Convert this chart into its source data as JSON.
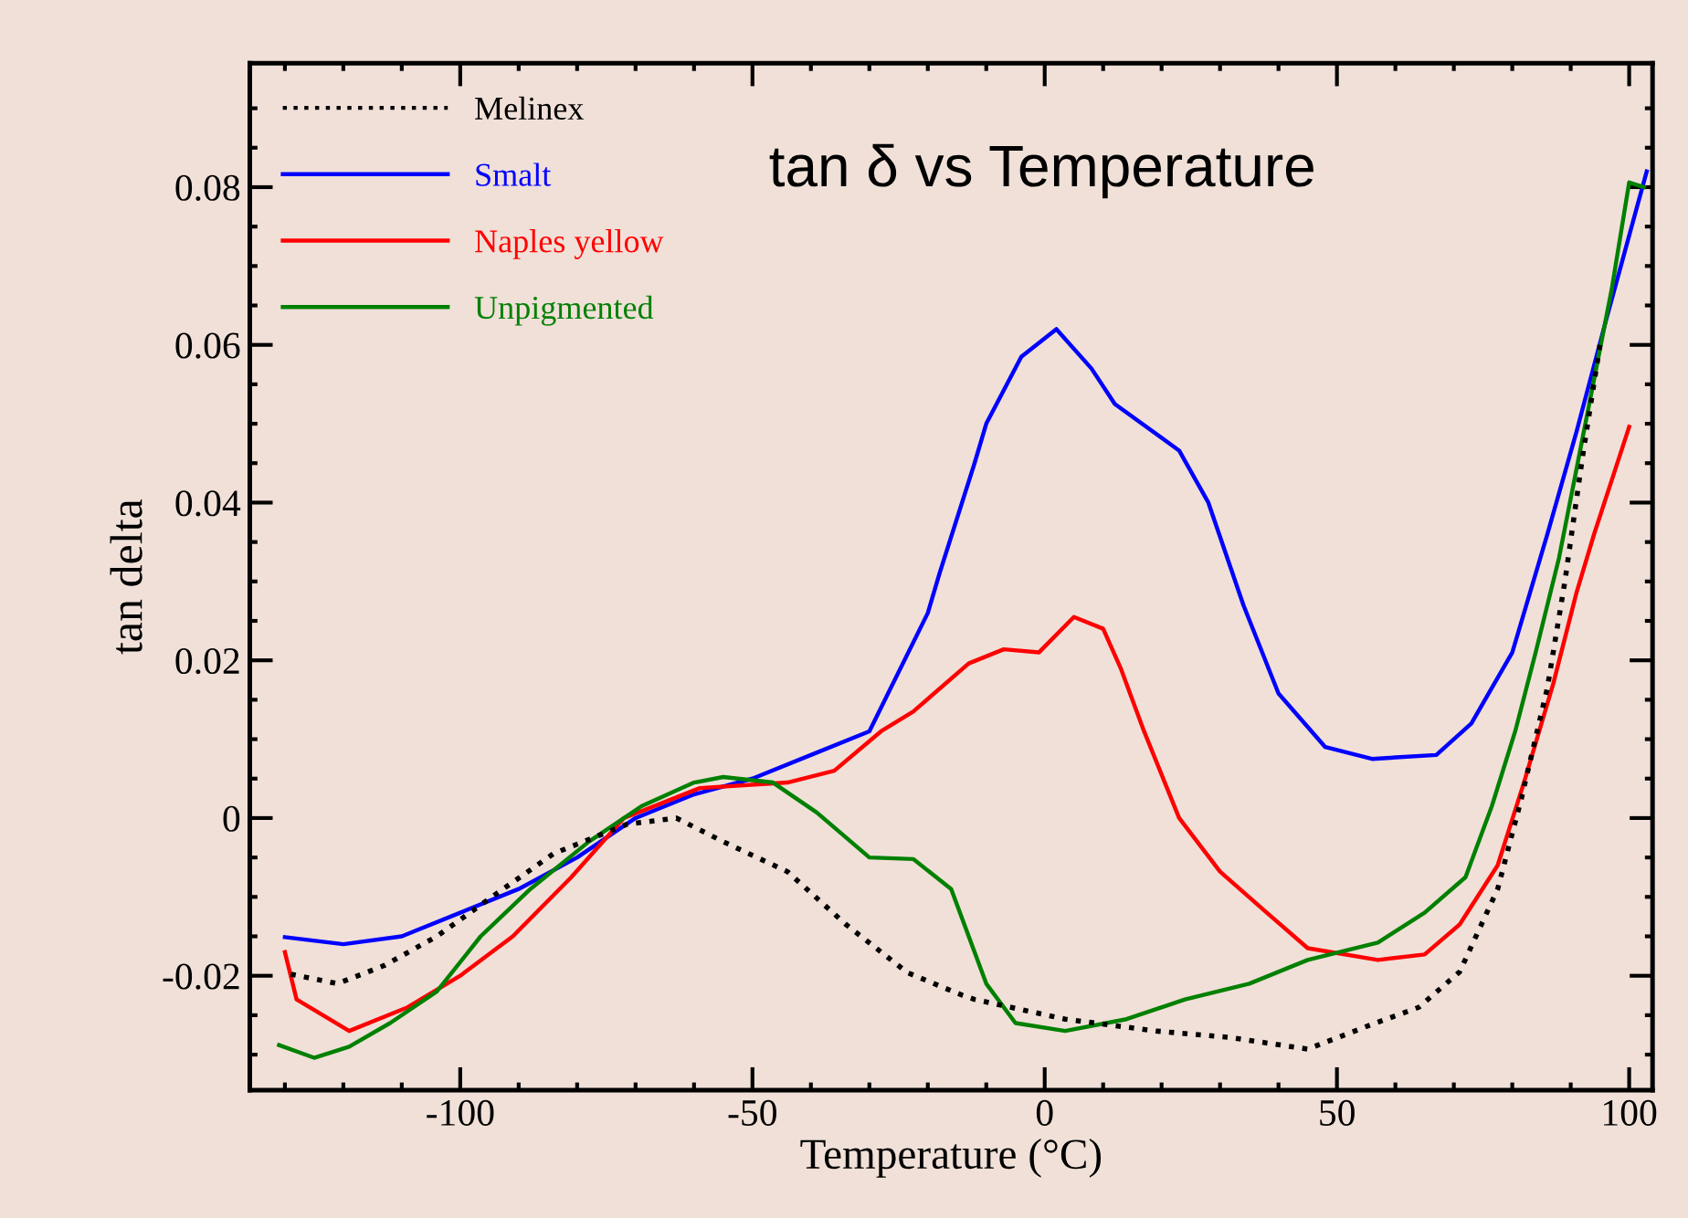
{
  "chart_data": {
    "type": "line",
    "title": "tan δ vs Temperature",
    "xlabel": "Temperature (°C)",
    "ylabel": "tan delta",
    "xlim": [
      -136,
      104
    ],
    "ylim": [
      -0.0345,
      0.0957
    ],
    "xticks": [
      {
        "value": -130,
        "label": null
      },
      {
        "value": -120,
        "label": null
      },
      {
        "value": -110,
        "label": null
      },
      -100,
      {
        "value": -90,
        "label": null
      },
      {
        "value": -80,
        "label": null
      },
      {
        "value": -70,
        "label": null
      },
      {
        "value": -60,
        "label": null
      },
      -50,
      {
        "value": -40,
        "label": null
      },
      {
        "value": -30,
        "label": null
      },
      {
        "value": -20,
        "label": null
      },
      {
        "value": -10,
        "label": null
      },
      0,
      {
        "value": 10,
        "label": null
      },
      {
        "value": 20,
        "label": null
      },
      {
        "value": 30,
        "label": null
      },
      {
        "value": 40,
        "label": null
      },
      50,
      {
        "value": 60,
        "label": null
      },
      {
        "value": 70,
        "label": null
      },
      {
        "value": 80,
        "label": null
      },
      {
        "value": 90,
        "label": null
      },
      100
    ],
    "yticks": [
      {
        "value": -0.03,
        "label": null
      },
      {
        "value": -0.025,
        "label": null
      },
      -0.02,
      {
        "value": -0.015,
        "label": null
      },
      {
        "value": -0.01,
        "label": null
      },
      {
        "value": -0.005,
        "label": null
      },
      0,
      {
        "value": 0.005,
        "label": null
      },
      {
        "value": 0.01,
        "label": null
      },
      {
        "value": 0.015,
        "label": null
      },
      0.02,
      {
        "value": 0.025,
        "label": null
      },
      {
        "value": 0.03,
        "label": null
      },
      {
        "value": 0.035,
        "label": null
      },
      0.04,
      {
        "value": 0.045,
        "label": null
      },
      {
        "value": 0.05,
        "label": null
      },
      {
        "value": 0.055,
        "label": null
      },
      0.06,
      {
        "value": 0.065,
        "label": null
      },
      {
        "value": 0.07,
        "label": null
      },
      {
        "value": 0.075,
        "label": null
      },
      0.08,
      {
        "value": 0.085,
        "label": null
      },
      {
        "value": 0.09,
        "label": null
      }
    ],
    "grid": false,
    "legend": "top left",
    "marker": "none",
    "series": [
      {
        "name": "Melinex",
        "color": "#000000",
        "line_style": "dotted",
        "x": [
          -129,
          -121,
          -113,
          -104,
          -94,
          -84,
          -71.5,
          -63,
          -55,
          -44,
          -34,
          -23.5,
          -14,
          -12,
          3.5,
          19,
          31.5,
          45,
          55.5,
          64,
          71,
          77.5,
          81.5,
          86,
          89,
          92,
          95
        ],
        "values": [
          -0.0198,
          -0.021,
          -0.0187,
          -0.015,
          -0.0097,
          -0.0045,
          -0.0008,
          0.0,
          -0.003,
          -0.0068,
          -0.0135,
          -0.0196,
          -0.0225,
          -0.023,
          -0.0255,
          -0.027,
          -0.0278,
          -0.0293,
          -0.0263,
          -0.024,
          -0.0195,
          -0.009,
          0.0023,
          0.0165,
          0.03,
          0.0457,
          0.06
        ]
      },
      {
        "name": "Smalt",
        "color": "#0000ff",
        "line_style": "solid",
        "x": [
          -130,
          -120,
          -110,
          -100,
          -90,
          -80,
          -70,
          -60,
          -50,
          -40,
          -30,
          -20,
          -18,
          -12,
          -10,
          -4,
          2,
          8,
          12,
          23,
          28,
          34,
          40,
          48,
          56,
          67,
          73,
          80,
          86,
          91,
          96,
          103
        ],
        "values": [
          -0.0151,
          -0.016,
          -0.015,
          -0.012,
          -0.009,
          -0.005,
          0.0,
          0.003,
          0.005,
          0.008,
          0.011,
          0.026,
          0.031,
          0.045,
          0.05,
          0.0585,
          0.062,
          0.057,
          0.0525,
          0.0466,
          0.04,
          0.027,
          0.0158,
          0.009,
          0.0075,
          0.008,
          0.012,
          0.021,
          0.036,
          0.049,
          0.063,
          0.082
        ]
      },
      {
        "name": "Naples yellow",
        "color": "#ff0000",
        "line_style": "solid",
        "x": [
          -130,
          -128,
          -119,
          -109,
          -100,
          -91,
          -81,
          -72,
          -59,
          -44,
          -36,
          -28,
          -22.5,
          -13,
          -7,
          -1,
          5,
          10,
          13,
          17,
          23,
          30,
          38,
          45,
          57,
          65,
          71,
          77.5,
          82,
          87,
          91,
          94,
          100
        ],
        "values": [
          -0.017,
          -0.023,
          -0.027,
          -0.024,
          -0.02,
          -0.015,
          -0.0075,
          0.0,
          0.0038,
          0.0045,
          0.006,
          0.011,
          0.0135,
          0.0196,
          0.0214,
          0.021,
          0.0255,
          0.024,
          0.019,
          0.011,
          0.0,
          -0.0068,
          -0.012,
          -0.0165,
          -0.018,
          -0.0173,
          -0.0135,
          -0.006,
          0.0045,
          0.017,
          0.0286,
          0.036,
          0.0496
        ]
      },
      {
        "name": "Unpigmented",
        "color": "#008000",
        "line_style": "solid",
        "x": [
          -131,
          -125,
          -119,
          -112,
          -104,
          -96.5,
          -88,
          -78,
          -69,
          -60,
          -55,
          -46.5,
          -39,
          -30,
          -22.5,
          -16,
          -10,
          -5,
          3.5,
          14,
          24,
          35,
          45,
          57,
          65,
          72,
          76.5,
          80.5,
          84,
          88,
          91,
          97,
          100,
          102.5
        ],
        "values": [
          -0.0288,
          -0.0304,
          -0.029,
          -0.026,
          -0.022,
          -0.015,
          -0.009,
          -0.003,
          0.0015,
          0.0045,
          0.0052,
          0.0045,
          0.0007,
          -0.005,
          -0.0052,
          -0.009,
          -0.021,
          -0.026,
          -0.027,
          -0.0255,
          -0.023,
          -0.021,
          -0.018,
          -0.0158,
          -0.012,
          -0.0075,
          0.0015,
          0.011,
          0.021,
          0.033,
          0.0443,
          0.067,
          0.0806,
          0.08
        ]
      }
    ]
  }
}
